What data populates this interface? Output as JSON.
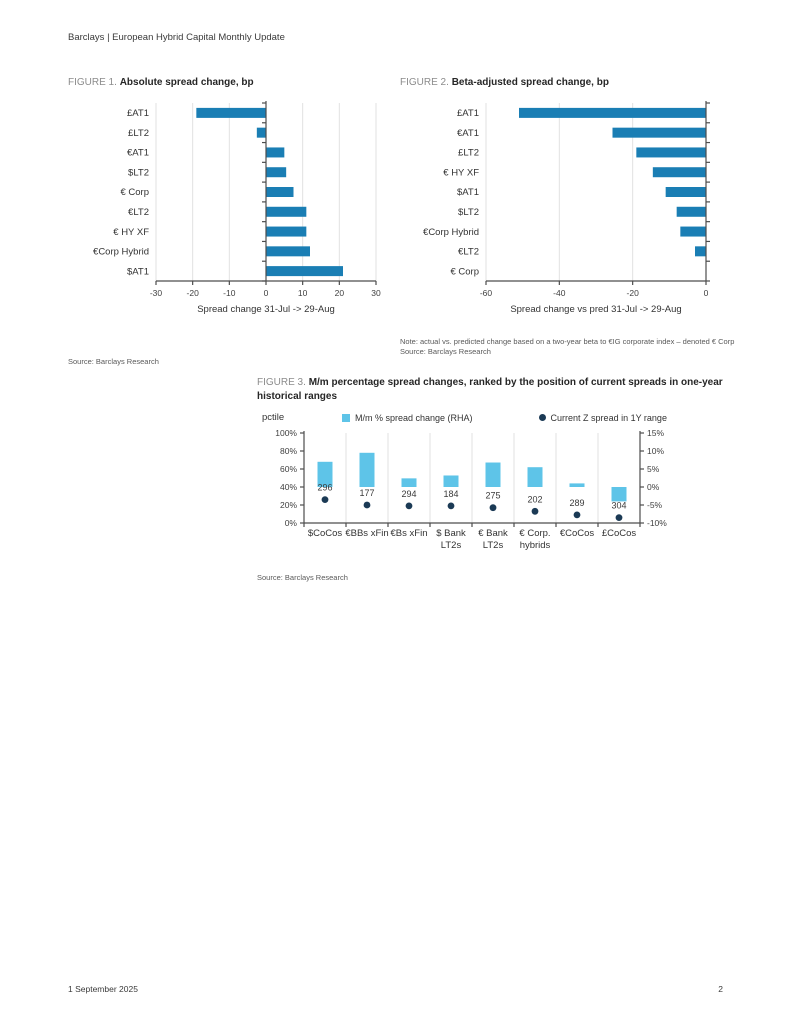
{
  "header": {
    "title": "Barclays | European Hybrid Capital Monthly Update"
  },
  "footer": {
    "date": "1 September 2025",
    "page": "2"
  },
  "colors": {
    "bar_blue": "#1a7eb4",
    "bar_cyan": "#5ec4e8",
    "dot_navy": "#1b3a55",
    "axis_dark": "#4d4d4d",
    "grid_light": "#e2e2e2",
    "tick_text": "#404040"
  },
  "figure1": {
    "label": "FIGURE 1.",
    "title": "Absolute spread change, bp",
    "source": "Source: Barclays Research"
  },
  "figure2": {
    "label": "FIGURE 2.",
    "title": "Beta-adjusted spread change, bp",
    "note": "Note: actual vs. predicted change based on a two-year beta to €IG corporate index – denoted € Corp",
    "source": "Source: Barclays Research"
  },
  "figure3": {
    "label": "FIGURE 3.",
    "title": "M/m percentage spread changes, ranked by the position of current spreads in one-year historical ranges",
    "axis_left_label": "pctile",
    "legend": [
      {
        "label": "M/m % spread change (RHA)",
        "marker": "square-cyan"
      },
      {
        "label": "Current Z spread in 1Y range",
        "marker": "dot-navy"
      }
    ],
    "source": "Source: Barclays Research"
  },
  "chart_data": [
    {
      "id": "figure1",
      "type": "bar",
      "orientation": "horizontal",
      "title": "Absolute spread change, bp",
      "categories": [
        "£AT1",
        "£LT2",
        "€AT1",
        "$LT2",
        "€ Corp",
        "€LT2",
        "€ HY XF",
        "€Corp Hybrid",
        "$AT1"
      ],
      "values": [
        -19,
        -2.5,
        5,
        5.5,
        7.5,
        11,
        11,
        12,
        21
      ],
      "xlabel": "Spread change 31-Jul -> 29-Aug",
      "xlim": [
        -30,
        30
      ],
      "xticks": [
        -30,
        -20,
        -10,
        0,
        10,
        20,
        30
      ],
      "grid": true
    },
    {
      "id": "figure2",
      "type": "bar",
      "orientation": "horizontal",
      "title": "Beta-adjusted spread change, bp",
      "categories": [
        "£AT1",
        "€AT1",
        "£LT2",
        "€ HY XF",
        "$AT1",
        "$LT2",
        "€Corp Hybrid",
        "€LT2",
        "€ Corp"
      ],
      "values": [
        -51,
        -25.5,
        -19,
        -14.5,
        -11,
        -8,
        -7,
        -3,
        0
      ],
      "xlabel": "Spread change vs pred 31-Jul -> 29-Aug",
      "xlim": [
        -60,
        0
      ],
      "xticks": [
        -60,
        -40,
        -20,
        0
      ],
      "grid": true
    },
    {
      "id": "figure3",
      "type": "bar",
      "title": "M/m percentage spread changes, ranked by the position of current spreads in one-year historical ranges",
      "categories": [
        "$CoCos",
        "€BBs xFin",
        "€Bs xFin",
        "$ Bank\nLT2s",
        "€ Bank\nLT2s",
        "€ Corp.\nhybrids",
        "€CoCos",
        "£CoCos"
      ],
      "series": [
        {
          "name": "M/m % spread change (RHA)",
          "type": "bar",
          "axis": "right",
          "values": [
            7,
            9.5,
            2.4,
            3.2,
            6.8,
            5.5,
            1,
            -4
          ]
        },
        {
          "name": "Current Z spread in 1Y range",
          "type": "scatter",
          "axis": "left",
          "values": [
            26,
            20,
            19,
            19,
            17,
            13,
            9,
            6
          ]
        }
      ],
      "point_labels": [
        "296",
        "177",
        "294",
        "184",
        "275",
        "202",
        "289",
        "304"
      ],
      "ylabel_left": "pctile",
      "ylim_left": [
        0,
        100
      ],
      "yticks_left": [
        0,
        20,
        40,
        60,
        80,
        100
      ],
      "ylim_right": [
        -10,
        15
      ],
      "yticks_right": [
        -10,
        -5,
        0,
        5,
        10,
        15
      ],
      "legend_position": "top",
      "grid": true
    }
  ]
}
